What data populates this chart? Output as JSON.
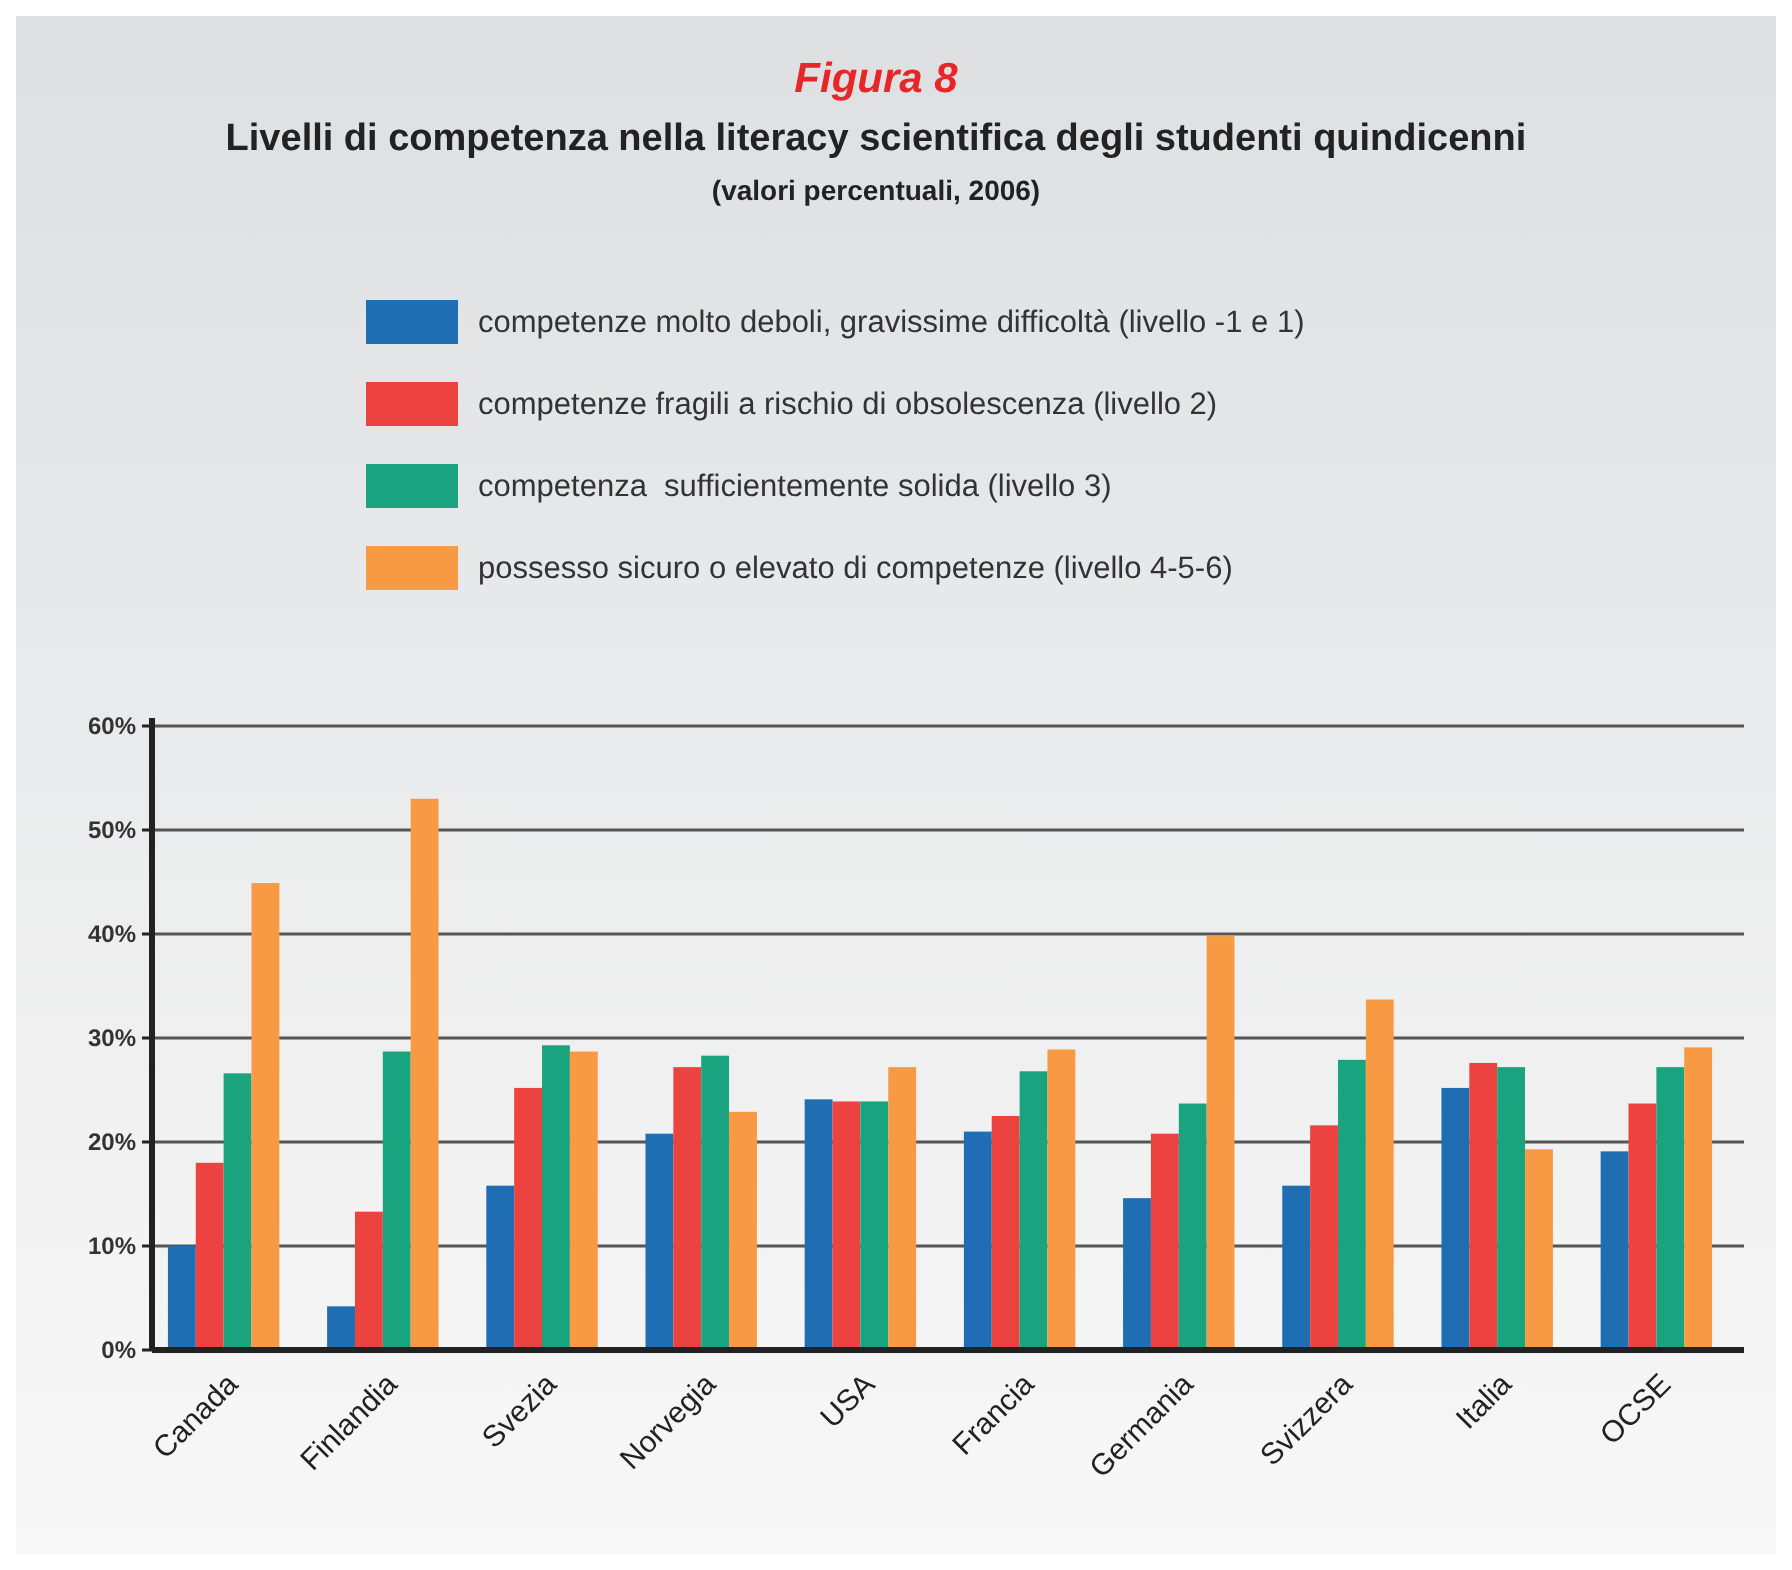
{
  "chart_data": {
    "type": "bar",
    "title": "Figura 8",
    "subtitle": "Livelli di competenza nella literacy scientifica degli studenti quindicenni",
    "annotations": [
      "(valori percentuali, 2006)"
    ],
    "categories": [
      "Canada",
      "Finlandia",
      "Svezia",
      "Norvegia",
      "USA",
      "Francia",
      "Germania",
      "Svizzera",
      "Italia",
      "OCSE"
    ],
    "series": [
      {
        "name": "competenze molto deboli, gravissime difficoltà (livello -1 e 1)",
        "color": "#1f6eb4",
        "values": [
          10,
          4.2,
          15.8,
          20.8,
          24.1,
          21,
          14.6,
          15.8,
          25.2,
          19.1
        ]
      },
      {
        "name": "competenze fragili a rischio di obsolescenza (livello 2)",
        "color": "#ec4340",
        "values": [
          18,
          13.3,
          25.2,
          27.2,
          23.9,
          22.5,
          20.8,
          21.6,
          27.6,
          23.7
        ]
      },
      {
        "name": "competenza  sufficientemente solida (livello 3)",
        "color": "#19a47f",
        "values": [
          26.6,
          28.7,
          29.3,
          28.3,
          23.9,
          26.8,
          23.7,
          27.9,
          27.2,
          27.2
        ]
      },
      {
        "name": "possesso sicuro o elevato di competenze (livello 4-5-6)",
        "color": "#f79a43",
        "values": [
          44.9,
          53,
          28.7,
          22.9,
          27.2,
          28.9,
          39.8,
          33.7,
          19.3,
          29.1
        ]
      }
    ],
    "ylim": [
      0,
      60
    ],
    "yticks": [
      {
        "value": 0,
        "label": "0%"
      },
      {
        "value": 10,
        "label": "10%"
      },
      {
        "value": 20,
        "label": "20%"
      },
      {
        "value": 30,
        "label": "30%"
      },
      {
        "value": 40,
        "label": "40%"
      },
      {
        "value": 50,
        "label": "50%"
      },
      {
        "value": 60,
        "label": "60%"
      }
    ],
    "grid": "y",
    "legend": "top"
  }
}
